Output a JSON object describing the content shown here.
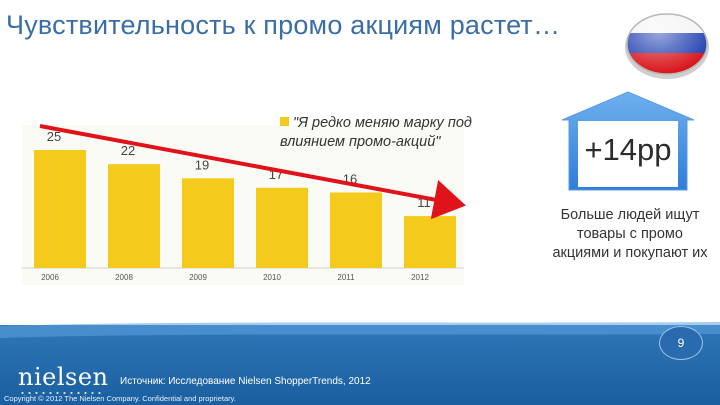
{
  "title": "Чувствительность к промо акциям растет…",
  "legend": {
    "label": "\"Я редко меняю марку под влиянием промо-акций\"",
    "color": "#f4cb1c"
  },
  "chart_data": {
    "type": "bar",
    "categories": [
      "2006",
      "2008",
      "2009",
      "2010",
      "2011",
      "2012"
    ],
    "values": [
      25,
      22,
      19,
      17,
      16,
      11
    ],
    "series_name": "\"Я редко меняю марку под влиянием промо-акций\"",
    "trend": "decreasing",
    "ylim": [
      0,
      25
    ]
  },
  "callout": {
    "value": "+14pp",
    "text": "Больше людей ищут товары с промо акциями и покупают их"
  },
  "footer": {
    "page_number": "9",
    "logo": "nielsen",
    "source": "Источник: Исследование Nielsen ShopperTrends, 2012",
    "copyright": "Copyright © 2012 The Nielsen Company. Confidential and proprietary."
  },
  "colors": {
    "bar": "#f4cb1c",
    "trend_arrow": "#e0121a",
    "up_arrow": "#3a8ee0",
    "title": "#3a6ea5",
    "footer": "#1f67aa"
  }
}
